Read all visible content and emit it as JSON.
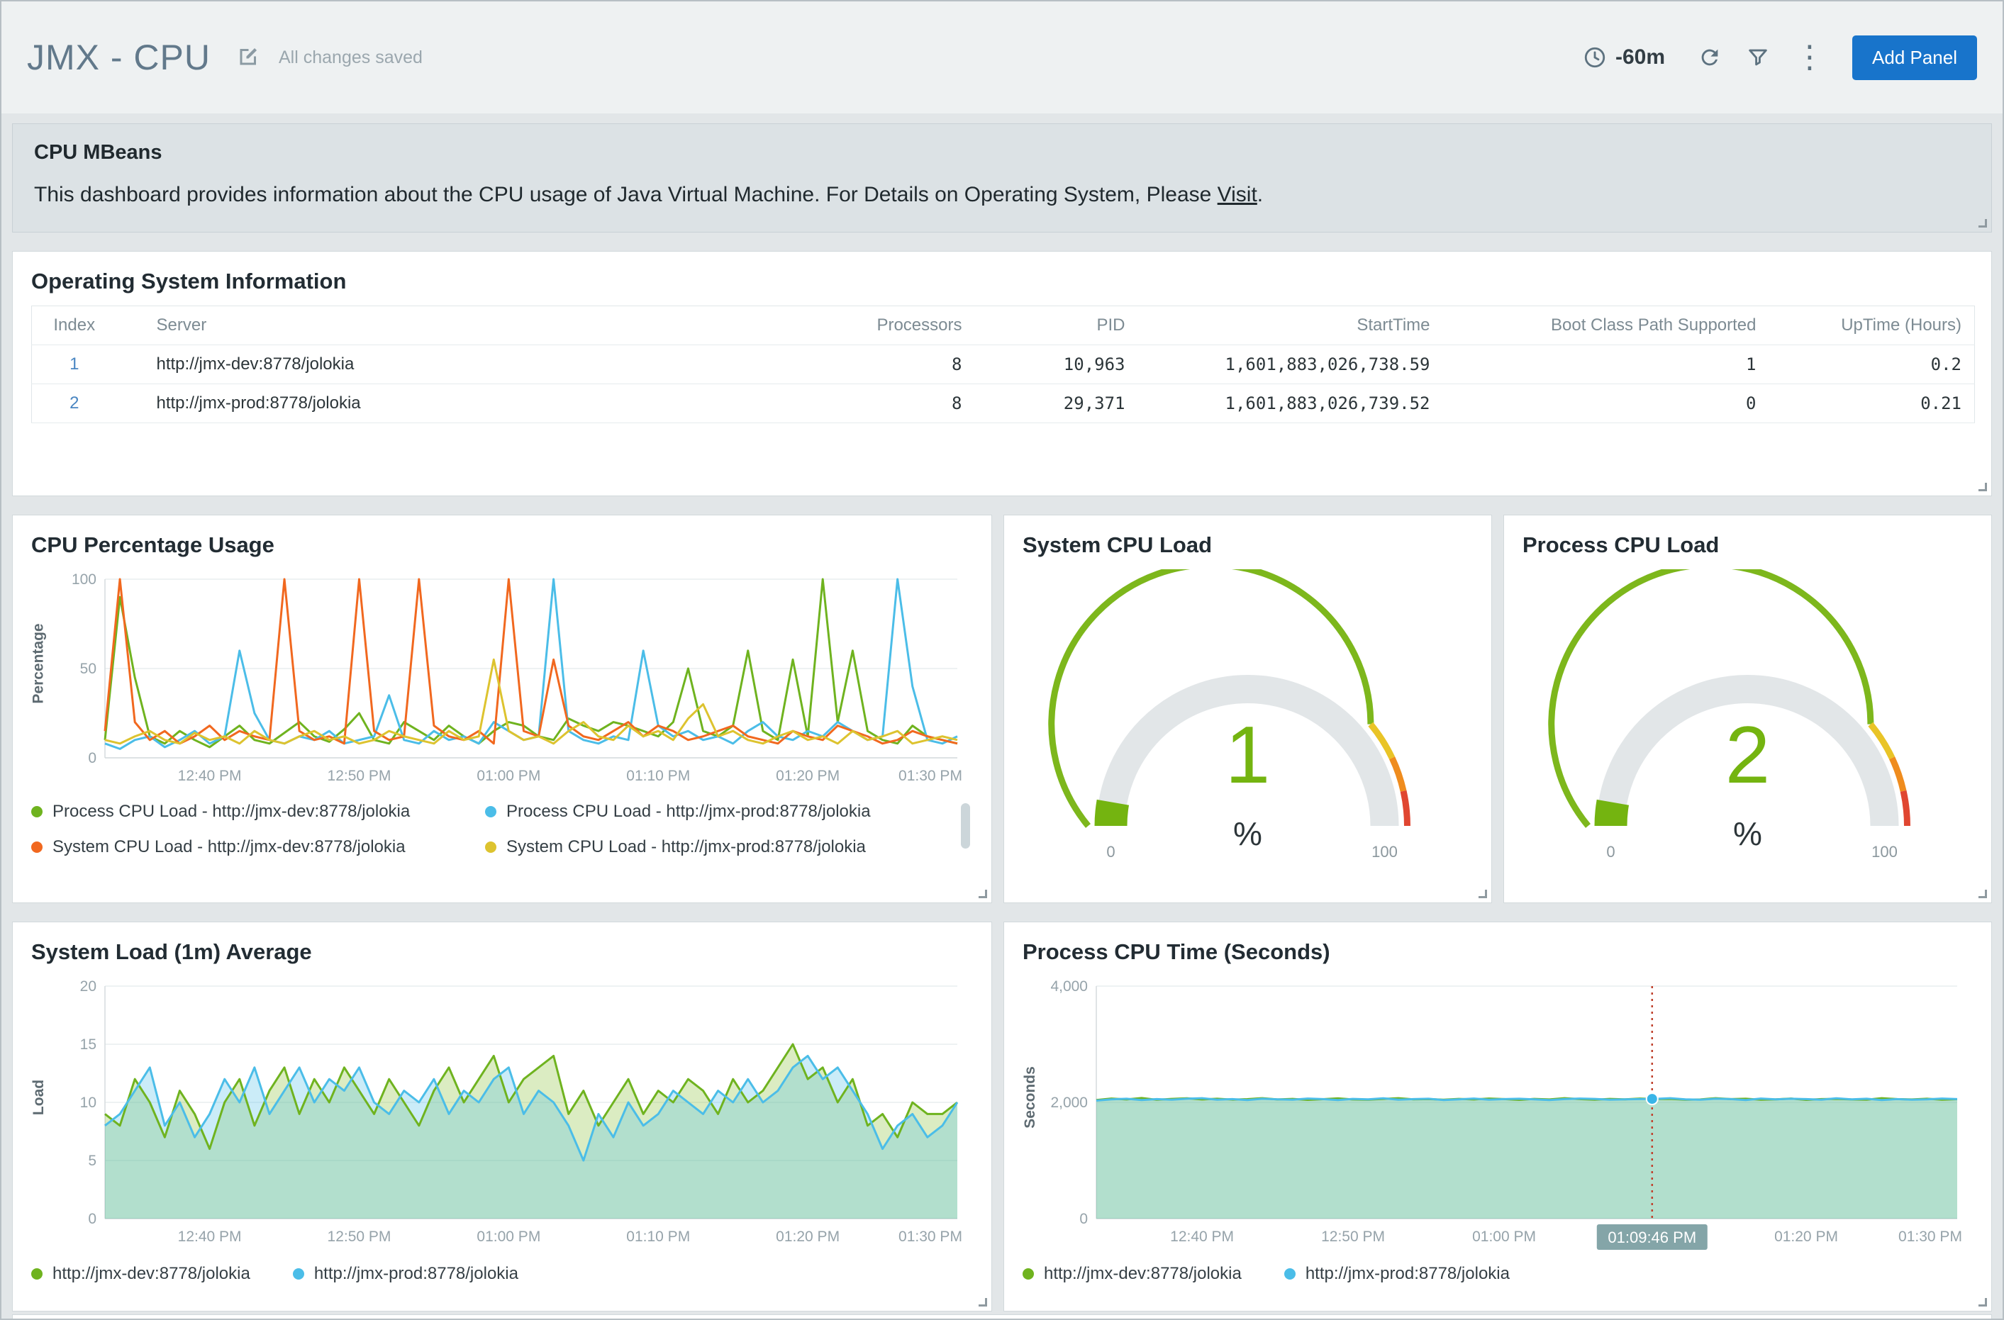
{
  "header": {
    "title": "JMX - CPU",
    "status": "All changes saved",
    "time_range": "-60m",
    "add_panel": "Add Panel",
    "accent_color": "#1874cb"
  },
  "mbeans": {
    "title": "CPU MBeans",
    "body": "This dashboard provides information about the CPU usage of Java Virtual Machine. For Details on Operating System, Please ",
    "link": "Visit",
    "suffix": "."
  },
  "os_table": {
    "title": "Operating System Information",
    "columns": [
      "Index",
      "Server",
      "Processors",
      "PID",
      "StartTime",
      "Boot Class Path Supported",
      "UpTime (Hours)"
    ],
    "rows": [
      [
        "1",
        "http://jmx-dev:8778/jolokia",
        "8",
        "10,963",
        "1,601,883,026,738.59",
        "1",
        "0.2"
      ],
      [
        "2",
        "http://jmx-prod:8778/jolokia",
        "8",
        "29,371",
        "1,601,883,026,739.52",
        "0",
        "0.21"
      ]
    ]
  },
  "chart_data": [
    {
      "id": "cpu_percentage",
      "type": "line",
      "title": "CPU Percentage Usage",
      "ylabel": "Percentage",
      "ylim": [
        0,
        100
      ],
      "yticks": [
        {
          "v": 0,
          "label": "0"
        },
        {
          "v": 50,
          "label": "50"
        },
        {
          "v": 100,
          "label": "100"
        }
      ],
      "xticks": [
        {
          "i": 7,
          "label": "12:40 PM"
        },
        {
          "i": 17,
          "label": "12:50 PM"
        },
        {
          "i": 27,
          "label": "01:00 PM"
        },
        {
          "i": 37,
          "label": "01:10 PM"
        },
        {
          "i": 47,
          "label": "01:20 PM"
        },
        {
          "i": 57,
          "label": "01:30 PM"
        }
      ],
      "series": [
        {
          "name": "Process CPU Load - http://jmx-dev:8778/jolokia",
          "color": "#6fb31f",
          "values": [
            10,
            90,
            45,
            12,
            8,
            15,
            10,
            6,
            12,
            18,
            10,
            8,
            14,
            20,
            12,
            9,
            16,
            25,
            10,
            8,
            20,
            15,
            10,
            18,
            12,
            8,
            15,
            20,
            18,
            12,
            10,
            22,
            18,
            15,
            20,
            18,
            15,
            12,
            20,
            50,
            15,
            12,
            18,
            60,
            15,
            10,
            55,
            12,
            100,
            20,
            60,
            15,
            10,
            8,
            18,
            12,
            10,
            8
          ]
        },
        {
          "name": "Process CPU Load - http://jmx-prod:8778/jolokia",
          "color": "#4bbde8",
          "values": [
            8,
            5,
            10,
            12,
            6,
            10,
            15,
            8,
            12,
            60,
            25,
            10,
            8,
            12,
            10,
            15,
            8,
            10,
            12,
            35,
            10,
            8,
            15,
            10,
            12,
            8,
            20,
            15,
            10,
            12,
            100,
            15,
            10,
            8,
            12,
            10,
            60,
            18,
            12,
            15,
            10,
            12,
            8,
            15,
            20,
            12,
            10,
            15,
            12,
            20,
            15,
            10,
            12,
            100,
            40,
            10,
            8,
            12
          ]
        },
        {
          "name": "System CPU Load - http://jmx-dev:8778/jolokia",
          "color": "#f1681f",
          "values": [
            15,
            100,
            20,
            10,
            15,
            8,
            12,
            18,
            10,
            15,
            12,
            10,
            100,
            15,
            10,
            12,
            8,
            100,
            15,
            10,
            12,
            100,
            18,
            12,
            10,
            15,
            8,
            100,
            15,
            12,
            55,
            18,
            12,
            10,
            15,
            20,
            12,
            18,
            15,
            10,
            12,
            15,
            18,
            12,
            10,
            8,
            15,
            12,
            10,
            18,
            15,
            12,
            8,
            10,
            15,
            12,
            10,
            8
          ]
        },
        {
          "name": "System CPU Load - http://jmx-prod:8778/jolokia",
          "color": "#ddc32f",
          "values": [
            10,
            8,
            12,
            15,
            10,
            8,
            14,
            10,
            12,
            8,
            15,
            10,
            8,
            12,
            15,
            10,
            12,
            8,
            10,
            15,
            12,
            10,
            8,
            15,
            10,
            12,
            55,
            15,
            10,
            12,
            8,
            15,
            20,
            12,
            10,
            18,
            12,
            15,
            10,
            22,
            30,
            12,
            15,
            10,
            8,
            12,
            15,
            10,
            12,
            8,
            15,
            10,
            12,
            15,
            8,
            10,
            12,
            10
          ]
        }
      ]
    },
    {
      "id": "system_cpu_gauge",
      "type": "gauge",
      "title": "System CPU Load",
      "value": 1,
      "unit": "%",
      "min": 0,
      "max": 100,
      "min_label": "0",
      "max_label": "100",
      "value_color": "#74b410",
      "bands": [
        {
          "from": 0,
          "to": 0.78,
          "color": "#7db71c"
        },
        {
          "from": 0.78,
          "to": 0.86,
          "color": "#e9c427"
        },
        {
          "from": 0.86,
          "to": 0.93,
          "color": "#ef8c1e"
        },
        {
          "from": 0.93,
          "to": 1,
          "color": "#e04631"
        }
      ]
    },
    {
      "id": "process_cpu_gauge",
      "type": "gauge",
      "title": "Process CPU Load",
      "value": 2,
      "unit": "%",
      "min": 0,
      "max": 100,
      "min_label": "0",
      "max_label": "100",
      "value_color": "#74b410",
      "bands": [
        {
          "from": 0,
          "to": 0.78,
          "color": "#7db71c"
        },
        {
          "from": 0.78,
          "to": 0.86,
          "color": "#e9c427"
        },
        {
          "from": 0.86,
          "to": 0.93,
          "color": "#ef8c1e"
        },
        {
          "from": 0.93,
          "to": 1,
          "color": "#e04631"
        }
      ]
    },
    {
      "id": "system_load",
      "type": "area",
      "title": "System Load (1m) Average",
      "ylabel": "Load",
      "ylim": [
        0,
        20
      ],
      "yticks": [
        {
          "v": 0,
          "label": "0"
        },
        {
          "v": 5,
          "label": "5"
        },
        {
          "v": 10,
          "label": "10"
        },
        {
          "v": 15,
          "label": "15"
        },
        {
          "v": 20,
          "label": "20"
        }
      ],
      "xticks": [
        {
          "i": 7,
          "label": "12:40 PM"
        },
        {
          "i": 17,
          "label": "12:50 PM"
        },
        {
          "i": 27,
          "label": "01:00 PM"
        },
        {
          "i": 37,
          "label": "01:10 PM"
        },
        {
          "i": 47,
          "label": "01:20 PM"
        },
        {
          "i": 57,
          "label": "01:30 PM"
        }
      ],
      "series": [
        {
          "name": "http://jmx-dev:8778/jolokia",
          "color": "#6fb31f",
          "fill": "rgba(124,185,35,0.28)",
          "values": [
            9,
            8,
            12,
            10,
            7,
            11,
            9,
            6,
            10,
            12,
            8,
            11,
            13,
            9,
            12,
            10,
            13,
            11,
            9,
            12,
            10,
            8,
            11,
            13,
            10,
            12,
            14,
            10,
            12,
            13,
            14,
            9,
            11,
            8,
            10,
            12,
            9,
            11,
            10,
            12,
            11,
            9,
            12,
            10,
            11,
            13,
            15,
            12,
            13,
            10,
            12,
            8,
            9,
            7,
            10,
            9,
            9,
            10
          ]
        },
        {
          "name": "http://jmx-prod:8778/jolokia",
          "color": "#4bbde8",
          "fill": "rgba(84,193,232,0.30)",
          "values": [
            8,
            9,
            11,
            13,
            8,
            10,
            7,
            9,
            12,
            10,
            13,
            9,
            11,
            13,
            10,
            12,
            11,
            13,
            10,
            9,
            11,
            10,
            12,
            9,
            11,
            10,
            12,
            13,
            9,
            11,
            10,
            8,
            5,
            9,
            7,
            10,
            8,
            9,
            11,
            10,
            9,
            11,
            10,
            12,
            10,
            11,
            13,
            14,
            12,
            13,
            11,
            9,
            6,
            8,
            9,
            7,
            8,
            10
          ]
        }
      ]
    },
    {
      "id": "process_cpu_time",
      "type": "area",
      "title": "Process CPU Time (Seconds)",
      "ylabel": "Seconds",
      "ylim": [
        0,
        4000
      ],
      "yticks": [
        {
          "v": 0,
          "label": "0"
        },
        {
          "v": 2000,
          "label": "2,000"
        },
        {
          "v": 4000,
          "label": "4,000"
        }
      ],
      "xticks": [
        {
          "i": 7,
          "label": "12:40 PM"
        },
        {
          "i": 17,
          "label": "12:50 PM"
        },
        {
          "i": 27,
          "label": "01:00 PM"
        },
        {
          "i": 37,
          "label": "01:10 PM"
        },
        {
          "i": 47,
          "label": "01:20 PM"
        },
        {
          "i": 57,
          "label": "01:30 PM"
        }
      ],
      "crosshair": {
        "i": 36.8,
        "label": "01:09:46 PM",
        "series": 1,
        "line_color": "#c0432f",
        "chip_color": "#84a5a8"
      },
      "series": [
        {
          "name": "http://jmx-dev:8778/jolokia",
          "color": "#6fb31f",
          "fill": "rgba(124,185,35,0.28)",
          "values": [
            2040,
            2065,
            2050,
            2075,
            2045,
            2060,
            2070,
            2050,
            2062,
            2048,
            2055,
            2072,
            2050,
            2060,
            2042,
            2055,
            2068,
            2050,
            2046,
            2060,
            2072,
            2052,
            2056,
            2046,
            2060,
            2050,
            2066,
            2056,
            2042,
            2060,
            2050,
            2072,
            2056,
            2046,
            2060,
            2052,
            2066,
            2056,
            2060,
            2046,
            2050,
            2072,
            2056,
            2062,
            2046,
            2052,
            2066,
            2042,
            2056,
            2060,
            2050,
            2046,
            2072,
            2056,
            2050,
            2062,
            2046,
            2055
          ]
        },
        {
          "name": "http://jmx-prod:8778/jolokia",
          "color": "#4bbde8",
          "fill": "rgba(84,193,232,0.30)",
          "values": [
            2030,
            2052,
            2062,
            2040,
            2056,
            2046,
            2062,
            2072,
            2046,
            2056,
            2040,
            2062,
            2052,
            2046,
            2066,
            2056,
            2040,
            2060,
            2052,
            2070,
            2046,
            2056,
            2062,
            2040,
            2052,
            2066,
            2046,
            2056,
            2062,
            2052,
            2040,
            2056,
            2066,
            2060,
            2046,
            2052,
            2056,
            2060,
            2072,
            2052,
            2046,
            2062,
            2056,
            2040,
            2066,
            2052,
            2062,
            2056,
            2046,
            2070,
            2052,
            2062,
            2040,
            2056,
            2046,
            2052,
            2066,
            2056
          ]
        }
      ]
    }
  ]
}
